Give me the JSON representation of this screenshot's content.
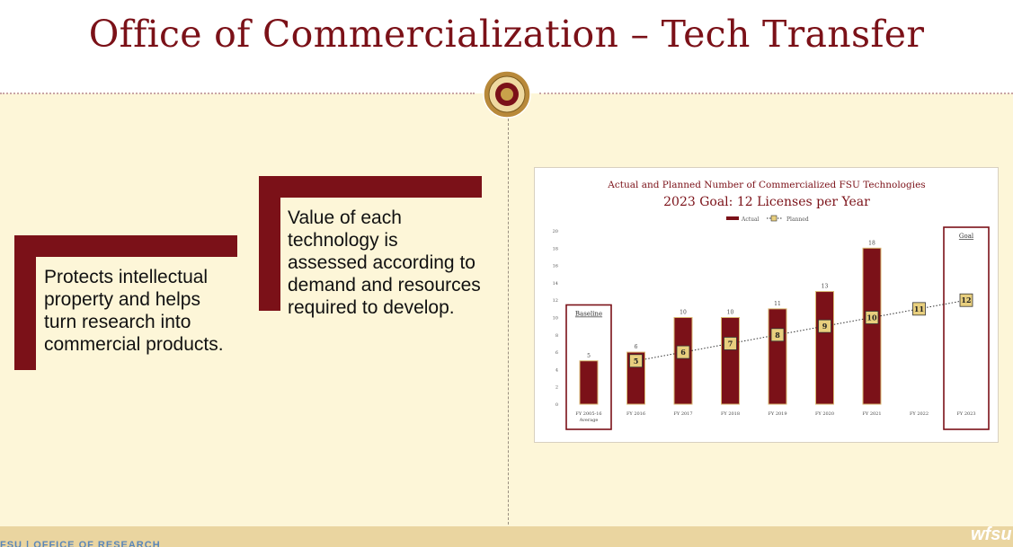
{
  "header": {
    "title": "Office of Commercialization – Tech Transfer"
  },
  "cards": [
    {
      "text": "Protects intellectual property and helps turn research into commercial products."
    },
    {
      "text": "Value of each technology is assessed according to demand and resources required to develop."
    }
  ],
  "footer": {
    "left": "FSU | OFFICE OF RESEARCH",
    "logo": "wfsu"
  },
  "colors": {
    "brand": "#7b1118",
    "gold": "#e8cf7e",
    "background": "#fdf6d8"
  },
  "chart_data": {
    "type": "bar",
    "title": "Actual and Planned Number of Commercialized FSU Technologies",
    "subtitle": "2023 Goal: 12 Licenses per Year",
    "legend": [
      "Actual",
      "Planned"
    ],
    "legend_position": "top-center",
    "categories": [
      "FY 2005-16 Average",
      "FY 2016",
      "FY 2017",
      "FY 2018",
      "FY 2019",
      "FY 2020",
      "FY 2021",
      "FY 2022",
      "FY 2023"
    ],
    "series": [
      {
        "name": "Actual",
        "type": "bar",
        "values": [
          5,
          6,
          10,
          10,
          11,
          13,
          18,
          null,
          null
        ]
      },
      {
        "name": "Planned",
        "type": "line",
        "values": [
          null,
          5,
          6,
          7,
          8,
          9,
          10,
          11,
          12
        ]
      }
    ],
    "yticks": [
      0,
      2,
      4,
      6,
      8,
      10,
      12,
      14,
      16,
      18,
      20
    ],
    "ylim": [
      0,
      20
    ],
    "grid": false,
    "annotations": [
      {
        "label": "Baseline",
        "category": "FY 2005-16 Average"
      },
      {
        "label": "Goal",
        "category": "FY 2023"
      }
    ]
  }
}
